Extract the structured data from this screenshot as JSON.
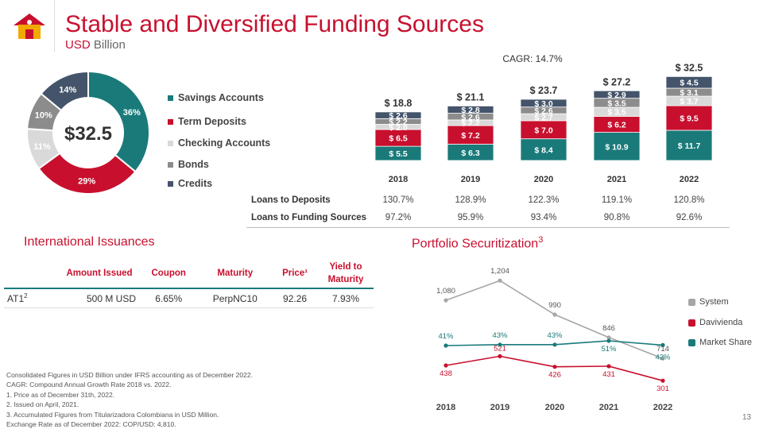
{
  "header": {
    "title": "Stable and Diversified Funding Sources",
    "subtitle_accent": "USD",
    "subtitle_rest": " Billion",
    "logo": "house-logo-icon"
  },
  "colors": {
    "savings": "#1a7a7a",
    "term": "#c8102e",
    "checking": "#d9d9d9",
    "bonds": "#8c8c8c",
    "credits": "#44546a",
    "system": "#a6a6a6",
    "davivienda": "#c8102e",
    "share": "#1a7a7a"
  },
  "chart_data": [
    {
      "type": "pie",
      "center_label": "$32.5",
      "slices": [
        {
          "name": "Savings Accounts",
          "value": 36,
          "label": "36%",
          "color": "#1a7a7a"
        },
        {
          "name": "Term Deposits",
          "value": 29,
          "label": "29%",
          "color": "#c8102e"
        },
        {
          "name": "Checking Accounts",
          "value": 11,
          "label": "11%",
          "color": "#d9d9d9"
        },
        {
          "name": "Bonds",
          "value": 10,
          "label": "10%",
          "color": "#8c8c8c"
        },
        {
          "name": "Credits",
          "value": 14,
          "label": "14%",
          "color": "#44546a"
        }
      ],
      "legend": [
        "Savings Accounts",
        "Term Deposits",
        "Checking Accounts",
        "Bonds",
        "Credits"
      ]
    },
    {
      "type": "bar",
      "stacked": true,
      "categories": [
        "2018",
        "2019",
        "2020",
        "2021",
        "2022"
      ],
      "totals": [
        "$ 18.8",
        "$ 21.1",
        "$ 23.7",
        "$ 27.2",
        "$ 32.5"
      ],
      "annotation": "CAGR: 14.7%",
      "series": [
        {
          "name": "Savings Accounts",
          "values": [
            5.5,
            6.3,
            8.4,
            10.9,
            11.7
          ],
          "labels": [
            "$ 5.5",
            "$ 6.3",
            "$ 8.4",
            "$ 10.9",
            "$ 11.7"
          ],
          "color": "#1a7a7a"
        },
        {
          "name": "Term Deposits",
          "values": [
            6.5,
            7.2,
            7.0,
            6.2,
            9.5
          ],
          "labels": [
            "$ 6.5",
            "$ 7.2",
            "$ 7.0",
            "$ 6.2",
            "$ 9.5"
          ],
          "color": "#c8102e"
        },
        {
          "name": "Checking Accounts",
          "values": [
            2.0,
            2.2,
            2.7,
            3.5,
            3.7
          ],
          "labels": [
            "$ 2.0",
            "$ 2.2",
            "$ 2.7",
            "$ 3.5",
            "$ 3.7"
          ],
          "color": "#d9d9d9"
        },
        {
          "name": "Bonds",
          "values": [
            2.2,
            2.6,
            2.6,
            3.5,
            3.1
          ],
          "labels": [
            "$ 2.2",
            "$ 2.6",
            "$ 2.6",
            "$ 3.5",
            "$ 3.1"
          ],
          "color": "#8c8c8c"
        },
        {
          "name": "Credits",
          "values": [
            2.6,
            2.8,
            3.0,
            2.9,
            4.5
          ],
          "labels": [
            "$ 2.6",
            "$ 2.8",
            "$ 3.0",
            "$ 2.9",
            "$ 4.5"
          ],
          "color": "#44546a"
        }
      ],
      "ratios": [
        {
          "label": "Loans to Deposits",
          "values": [
            "130.7%",
            "128.9%",
            "122.3%",
            "119.1%",
            "120.8%"
          ]
        },
        {
          "label": "Loans to Funding Sources",
          "values": [
            "97.2%",
            "95.9%",
            "93.4%",
            "90.8%",
            "92.6%"
          ]
        }
      ]
    },
    {
      "type": "line",
      "x": [
        "2018",
        "2019",
        "2020",
        "2021",
        "2022"
      ],
      "series": [
        {
          "name": "System",
          "values": [
            1080,
            1204,
            990,
            846,
            714
          ],
          "labels": [
            "1,080",
            "1,204",
            "990",
            "846",
            "714"
          ],
          "color": "#a6a6a6"
        },
        {
          "name": "Davivienda",
          "values": [
            438,
            521,
            426,
            431,
            301
          ],
          "labels": [
            "438",
            "521",
            "426",
            "431",
            "301"
          ],
          "color": "#c8102e"
        },
        {
          "name": "Market Share",
          "values": [
            41,
            43,
            43,
            51,
            42
          ],
          "labels": [
            "41%",
            "43%",
            "43%",
            "51%",
            "42%"
          ],
          "color": "#1a7a7a"
        }
      ],
      "legend": [
        "System",
        "Davivienda",
        "Market Share"
      ]
    }
  ],
  "issuances": {
    "title": "International Issuances",
    "headers": [
      "",
      "Amount Issued",
      "Coupon",
      "Maturity",
      "Price¹",
      "Yield to Maturity"
    ],
    "rows": [
      {
        "name": "AT1",
        "sup": "2",
        "amount": "500  M USD",
        "coupon": "6.65%",
        "maturity": "PerpNC10",
        "price": "92.26",
        "yield": "7.93%"
      }
    ]
  },
  "securitization": {
    "title": "Portfolio Securitization",
    "sup": "3"
  },
  "footnotes": [
    "Consolidated Figures in USD Billion under IFRS accounting as of December 2022.",
    "CAGR: Compound Annual Growth Rate 2018 vs. 2022.",
    "1. Price as of December 31th, 2022.",
    "2. Issued on April, 2021.",
    "3. Accumulated Figures from Titularizadora Colombiana in USD Million.",
    "Exchange Rate as of December 2022: COP/USD: 4,810."
  ],
  "page_number": "13"
}
